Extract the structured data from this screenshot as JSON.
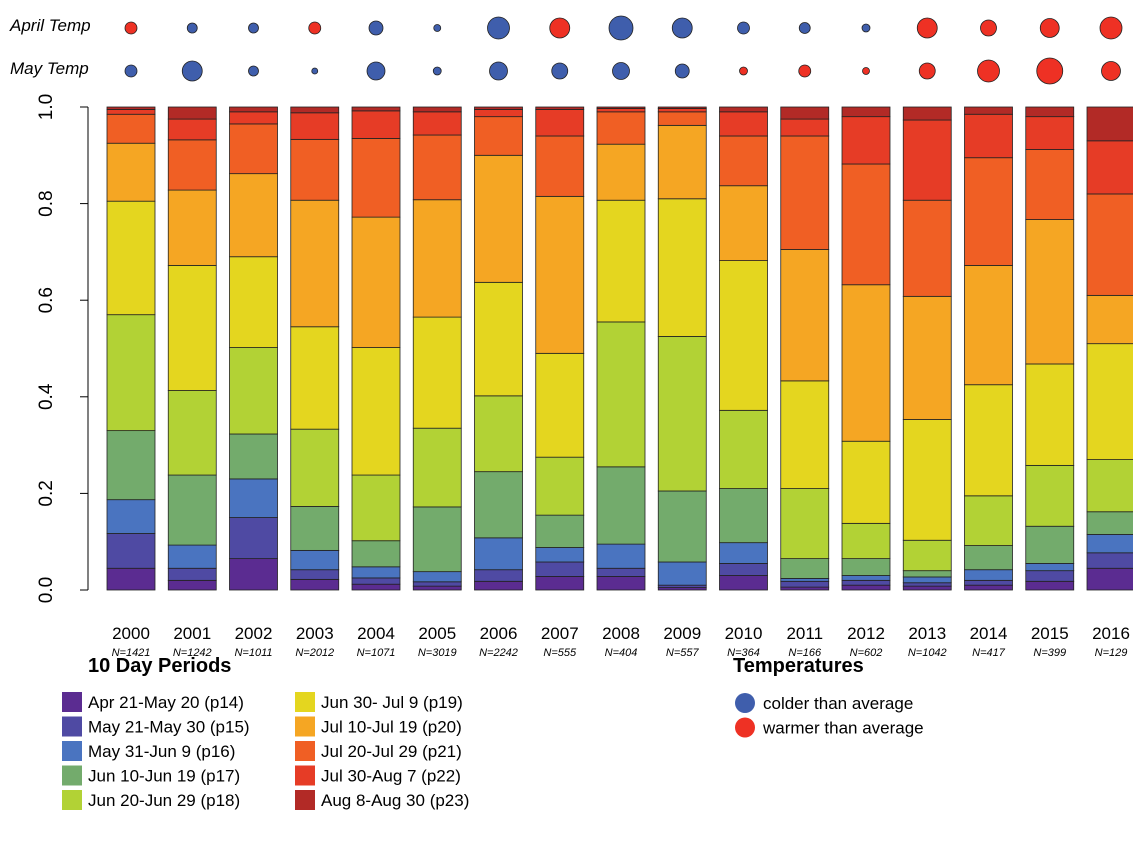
{
  "chart_data": {
    "type": "stacked_bar",
    "categories": [
      "2000",
      "2001",
      "2002",
      "2003",
      "2004",
      "2005",
      "2006",
      "2007",
      "2008",
      "2009",
      "2010",
      "2011",
      "2012",
      "2013",
      "2014",
      "2015",
      "2016"
    ],
    "n_labels": [
      "N=1421",
      "N=1242",
      "N=1011",
      "N=2012",
      "N=1071",
      "N=3019",
      "N=2242",
      "N=555",
      "N=404",
      "N=557",
      "N=364",
      "N=166",
      "N=602",
      "N=1042",
      "N=417",
      "N=399",
      "N=129"
    ],
    "ylim": [
      0,
      1
    ],
    "yticks": [
      {
        "value": 0,
        "label": "0.0"
      },
      0.2,
      0.4,
      0.6,
      0.8,
      {
        "value": 1,
        "label": "1.0"
      }
    ],
    "legend_title": "10 Day Periods",
    "series": [
      {
        "name": "Apr 21-May 20 (p14)",
        "color": "#5b2c91",
        "values": [
          0.045,
          0.02,
          0.065,
          0.022,
          0.012,
          0.008,
          0.018,
          0.028,
          0.028,
          0.005,
          0.03,
          0.006,
          0.01,
          0.008,
          0.01,
          0.018,
          0.045
        ]
      },
      {
        "name": "May 21-May 30 (p15)",
        "color": "#4f4aa3",
        "values": [
          0.072,
          0.025,
          0.085,
          0.02,
          0.013,
          0.009,
          0.024,
          0.03,
          0.017,
          0.005,
          0.025,
          0.012,
          0.01,
          0.007,
          0.01,
          0.022,
          0.032
        ]
      },
      {
        "name": "May 31-Jun 9 (p16)",
        "color": "#4a74c0",
        "values": [
          0.07,
          0.048,
          0.08,
          0.04,
          0.023,
          0.021,
          0.066,
          0.03,
          0.05,
          0.048,
          0.043,
          0.006,
          0.01,
          0.012,
          0.022,
          0.015,
          0.038
        ]
      },
      {
        "name": "Jun 10-Jun 19 (p17)",
        "color": "#73ab6c",
        "values": [
          0.143,
          0.145,
          0.093,
          0.091,
          0.054,
          0.134,
          0.137,
          0.067,
          0.16,
          0.147,
          0.112,
          0.041,
          0.035,
          0.013,
          0.05,
          0.077,
          0.047
        ]
      },
      {
        "name": "Jun 20-Jun 29 (p18)",
        "color": "#b2d235",
        "values": [
          0.24,
          0.175,
          0.179,
          0.16,
          0.136,
          0.163,
          0.157,
          0.12,
          0.3,
          0.32,
          0.162,
          0.145,
          0.073,
          0.063,
          0.103,
          0.126,
          0.108
        ]
      },
      {
        "name": "Jun 30- Jul 9 (p19)",
        "color": "#e4d61f",
        "values": [
          0.235,
          0.259,
          0.188,
          0.212,
          0.264,
          0.23,
          0.235,
          0.215,
          0.252,
          0.285,
          0.31,
          0.223,
          0.17,
          0.25,
          0.23,
          0.21,
          0.24
        ]
      },
      {
        "name": "Jul 10-Jul 19 (p20)",
        "color": "#f5a623",
        "values": [
          0.12,
          0.156,
          0.172,
          0.262,
          0.27,
          0.243,
          0.263,
          0.325,
          0.116,
          0.152,
          0.155,
          0.272,
          0.324,
          0.255,
          0.247,
          0.299,
          0.1
        ]
      },
      {
        "name": "Jul 20-Jul 29 (p21)",
        "color": "#f05f24",
        "values": [
          0.06,
          0.104,
          0.103,
          0.126,
          0.163,
          0.134,
          0.08,
          0.125,
          0.067,
          0.028,
          0.103,
          0.235,
          0.25,
          0.199,
          0.223,
          0.145,
          0.21
        ]
      },
      {
        "name": "Jul 30-Aug 7 (p22)",
        "color": "#e63c26",
        "values": [
          0.01,
          0.043,
          0.025,
          0.055,
          0.057,
          0.048,
          0.015,
          0.055,
          0.007,
          0.007,
          0.05,
          0.035,
          0.098,
          0.166,
          0.09,
          0.068,
          0.11
        ]
      },
      {
        "name": "Aug 8-Aug 30 (p23)",
        "color": "#b22a26",
        "values": [
          0.005,
          0.025,
          0.01,
          0.012,
          0.008,
          0.01,
          0.005,
          0.005,
          0.003,
          0.003,
          0.01,
          0.025,
          0.02,
          0.027,
          0.015,
          0.02,
          0.07
        ]
      }
    ],
    "temp_legend_title": "Temperatures",
    "temp_legend": [
      {
        "name": "colder than average",
        "color": "#3f5eac"
      },
      {
        "name": "warmer than average",
        "color": "#ee3124"
      }
    ],
    "temp_rows": [
      {
        "name": "April Temp",
        "values": [
          0.6,
          -0.5,
          -0.5,
          0.6,
          -0.7,
          -0.35,
          -1.1,
          1.0,
          -1.2,
          -1.0,
          -0.6,
          -0.55,
          -0.4,
          1.0,
          0.8,
          0.95,
          1.1
        ]
      },
      {
        "name": "May Temp",
        "values": [
          -0.6,
          -1.0,
          -0.5,
          -0.3,
          -0.9,
          -0.4,
          -0.9,
          -0.8,
          -0.85,
          -0.7,
          0.4,
          0.6,
          0.35,
          0.8,
          1.1,
          1.3,
          0.95
        ]
      }
    ]
  }
}
